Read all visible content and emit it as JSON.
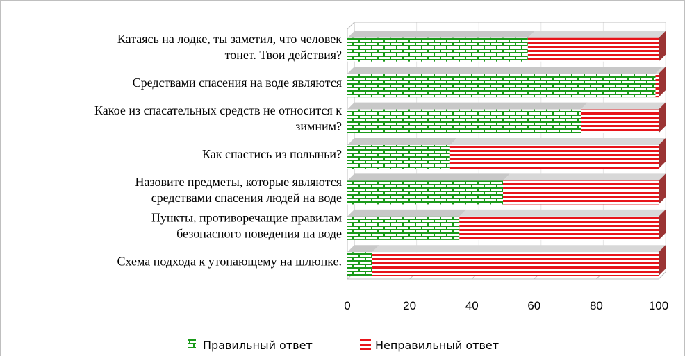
{
  "chart_data": {
    "type": "bar",
    "orientation": "horizontal",
    "stacked": true,
    "categories": [
      [
        "Катаясь на лодке, ты заметил, что человек",
        "тонет. Твои действия?"
      ],
      [
        "Средствами спасения на воде являются"
      ],
      [
        "Какое из спасательных средств не относится к",
        "зимним?"
      ],
      [
        "Как спастись из полыньи?"
      ],
      [
        "Назовите предметы, которые являются",
        "средствами спасения людей на воде"
      ],
      [
        "Пункты, противоречащие правилам",
        "безопасного поведения на воде"
      ],
      [
        "Схема подхода к утопающему на шлюпке."
      ]
    ],
    "series": [
      {
        "name": "Правильный ответ",
        "values": [
          58,
          99,
          75,
          33,
          50,
          36,
          8
        ],
        "color": "#1a9a1a",
        "pattern": "brick"
      },
      {
        "name": "Неправильный ответ",
        "values": [
          42,
          1,
          25,
          67,
          50,
          64,
          92
        ],
        "color": "#e8141a",
        "pattern": "stripes"
      }
    ],
    "xlim": [
      0,
      100
    ],
    "xticks": [
      0,
      20,
      40,
      60,
      80,
      100
    ],
    "grid": true,
    "legend_position": "bottom"
  }
}
